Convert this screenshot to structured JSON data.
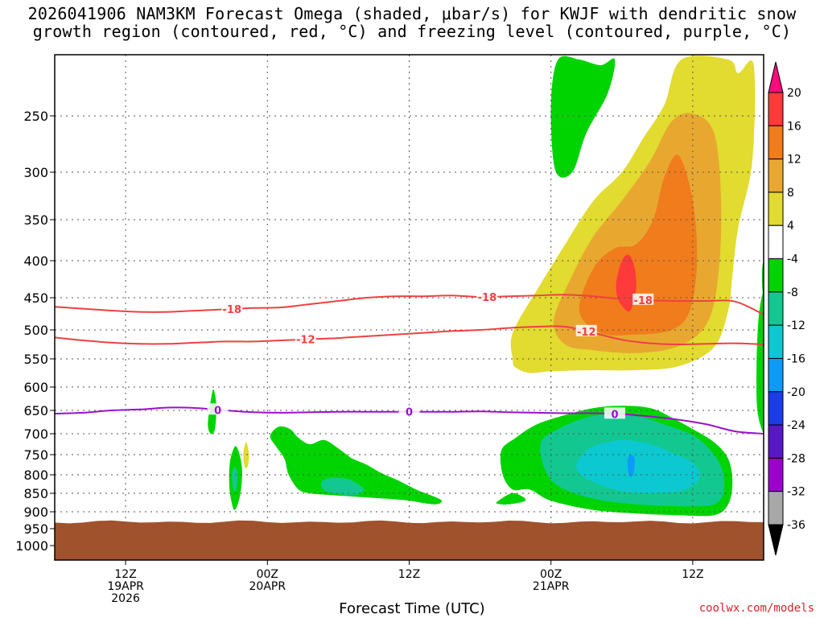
{
  "chart_data": {
    "type": "time-height cross section (filled contour + line contours)",
    "title_line1": "2026041906 NAM3KM Forecast Omega (shaded, μbar/s) for KWJF with dendritic snow",
    "title_line2": "growth region (contoured, red, °C) and freezing level (contoured, purple, °C)",
    "xlabel": "Forecast Time (UTC)",
    "ylabel": "",
    "credit": "coolwx.com/models",
    "x_range_hours": [
      0,
      50
    ],
    "x_ticks": [
      {
        "hour": 5,
        "label1": "12Z",
        "label2": "19APR",
        "label3": "2026"
      },
      {
        "hour": 15,
        "label1": "00Z",
        "label2": "20APR",
        "label3": ""
      },
      {
        "hour": 25,
        "label1": "12Z",
        "label2": "",
        "label3": ""
      },
      {
        "hour": 35,
        "label1": "00Z",
        "label2": "21APR",
        "label3": ""
      },
      {
        "hour": 45,
        "label1": "12Z",
        "label2": "",
        "label3": ""
      }
    ],
    "y_range_hpa": [
      200,
      1015
    ],
    "y_ticks": [
      250,
      300,
      350,
      400,
      450,
      500,
      550,
      600,
      650,
      700,
      750,
      800,
      850,
      900,
      950,
      1000
    ],
    "grid": "dotted",
    "terrain_top_hpa": 930,
    "colorbar": {
      "labels": [
        "20",
        "16",
        "12",
        "8",
        "4",
        "-4",
        "-8",
        "-12",
        "-16",
        "-20",
        "-24",
        "-28",
        "-32",
        "-36"
      ],
      "colors": [
        "#ff0b7c",
        "#ff3a3a",
        "#f07c1c",
        "#e8a830",
        "#e2db30",
        "#ffffff",
        "#00d400",
        "#12c890",
        "#0cc8d0",
        "#0c9cf8",
        "#1c3ce8",
        "#5818c8",
        "#9c00cc",
        "#a8a8a8",
        "#000000"
      ]
    },
    "omega_regions": [
      {
        "level": 4,
        "color": "#e2db30",
        "hours": [
          32,
          33,
          35,
          37,
          39,
          41,
          43,
          45,
          47,
          49,
          48,
          46,
          44,
          42,
          40,
          38,
          36,
          34,
          32
        ],
        "pressures_top": [
          500,
          450,
          400,
          350,
          320,
          280,
          250,
          230,
          210,
          215,
          420,
          520,
          560,
          565,
          570,
          560,
          555,
          555,
          550
        ]
      },
      {
        "level": 8,
        "color": "#e8a830",
        "hours": [
          36,
          38,
          40,
          42,
          44,
          46,
          47,
          46,
          44,
          42,
          40,
          38,
          36
        ],
        "pressures_top": [
          470,
          400,
          350,
          300,
          260,
          260,
          350,
          500,
          525,
          530,
          535,
          530,
          520
        ]
      },
      {
        "level": 12,
        "color": "#f07c1c",
        "hours": [
          38,
          39,
          40,
          42,
          43,
          44,
          45,
          44,
          42,
          40,
          38
        ],
        "pressures_top": [
          450,
          400,
          370,
          350,
          320,
          290,
          350,
          480,
          500,
          505,
          480
        ]
      },
      {
        "level": 16,
        "color": "#ff3a3a",
        "hours": [
          39.7,
          40.4,
          40.8,
          40.4,
          39.7
        ],
        "pressures_top": [
          420,
          400,
          430,
          460,
          440
        ]
      },
      {
        "level": -4,
        "color": "#00d400",
        "name": "lower upward-motion areas"
      },
      {
        "level": -8,
        "color": "#12c890",
        "name": "core upward-motion area"
      },
      {
        "level": -12,
        "color": "#0cc8d0",
        "name": "cyan core"
      },
      {
        "level": -16,
        "color": "#0c9cf8",
        "name": "deep-blue core"
      }
    ],
    "series": [
      {
        "name": "-18",
        "color": "#f04040",
        "label": "-18",
        "hours": [
          0,
          2,
          4,
          6,
          8,
          10,
          12,
          14,
          16,
          18,
          20,
          22,
          24,
          26,
          28,
          30,
          32,
          34,
          36,
          38,
          40,
          42,
          44,
          46,
          48,
          50
        ],
        "pressures": [
          464,
          467,
          470,
          472,
          472,
          470,
          468,
          466,
          465,
          460,
          455,
          450,
          448,
          448,
          447,
          449,
          448,
          447,
          446,
          448,
          452,
          454,
          455,
          455,
          456,
          476
        ]
      },
      {
        "name": "-12",
        "color": "#f04040",
        "label": "-12",
        "hours": [
          0,
          2,
          4,
          6,
          8,
          10,
          12,
          14,
          16,
          18,
          20,
          22,
          24,
          26,
          28,
          30,
          32,
          34,
          36,
          38,
          40,
          42,
          44,
          46,
          48,
          50
        ],
        "pressures": [
          513,
          518,
          522,
          524,
          524,
          522,
          520,
          520,
          518,
          516,
          514,
          511,
          508,
          505,
          502,
          500,
          497,
          495,
          495,
          505,
          517,
          523,
          525,
          524,
          523,
          525
        ]
      },
      {
        "name": "0",
        "color": "#9a11cc",
        "label": "0",
        "hours": [
          0,
          2,
          4,
          6,
          8,
          10,
          12,
          14,
          16,
          18,
          20,
          22,
          24,
          26,
          28,
          30,
          32,
          34,
          36,
          38,
          40,
          42,
          44,
          46,
          48,
          50
        ],
        "pressures": [
          657,
          655,
          650,
          648,
          644,
          645,
          650,
          654,
          655,
          654,
          653,
          653,
          653,
          653,
          653,
          652,
          654,
          655,
          656,
          656,
          658,
          663,
          670,
          680,
          695,
          700
        ]
      }
    ]
  }
}
